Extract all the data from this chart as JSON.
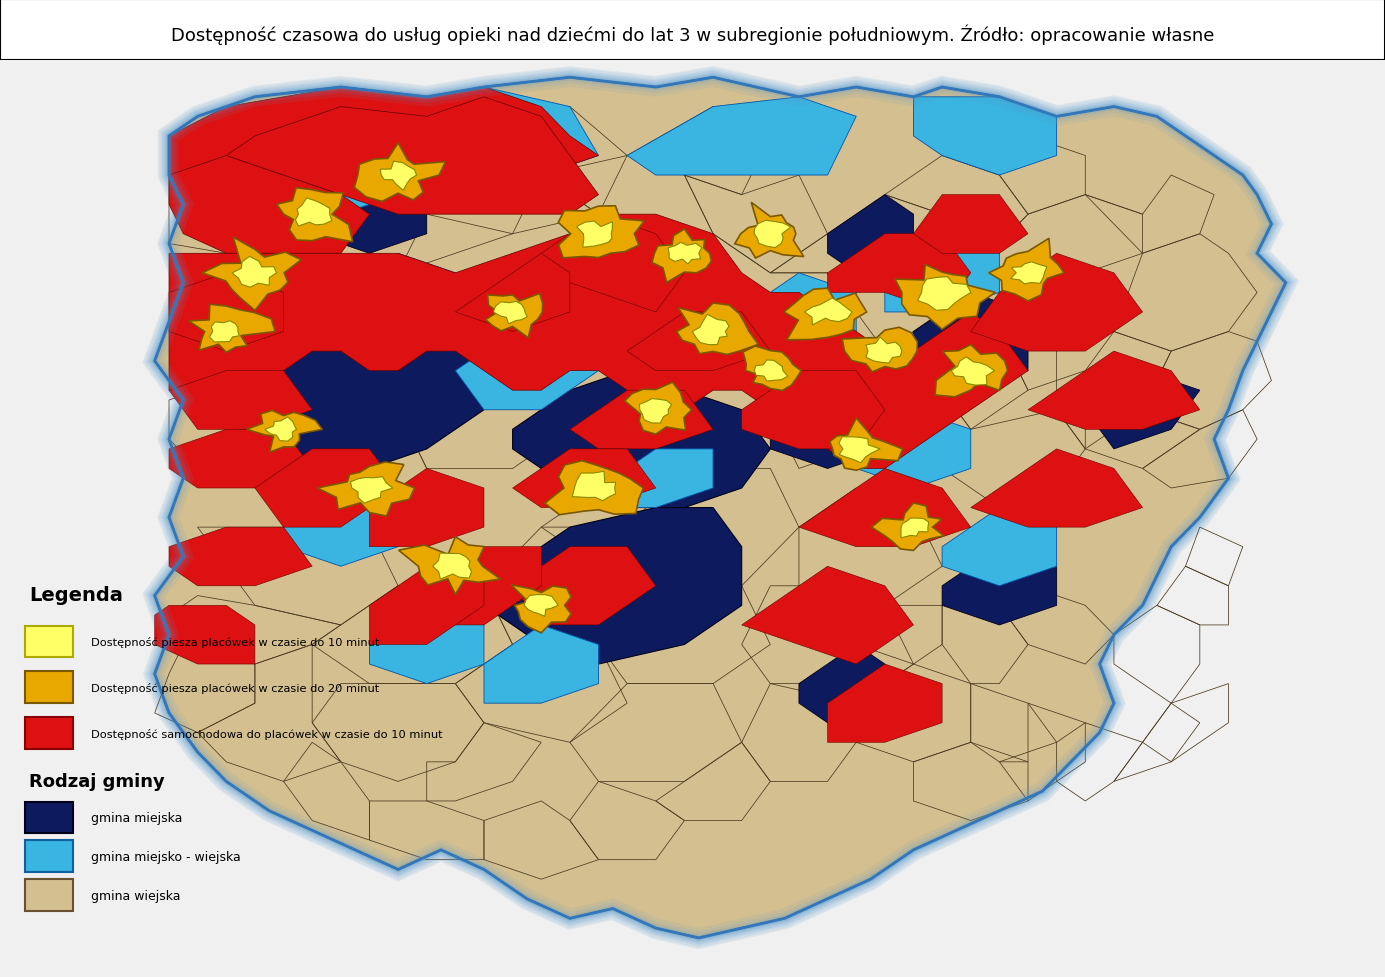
{
  "title": "Dostępność czasowa do usług opieki nad dziećmi do lat 3 w subregionie południowym. Źródło: opracowanie własne",
  "title_fontsize": 13,
  "legend": {
    "header": "Legenda",
    "items": [
      {
        "label": "Dostępność piesza placówek w czasie do 10 minut",
        "color": "#ffff66",
        "edgecolor": "#aaaa00"
      },
      {
        "label": "Dostępność piesza placówek w czasie do 20 minut",
        "color": "#e8a800",
        "edgecolor": "#7a5800"
      },
      {
        "label": "Dostępność samochodowa do placówek w czasie do 10 minut",
        "color": "#dd1111",
        "edgecolor": "#880000"
      }
    ],
    "header2": "Rodzaj gminy",
    "items2": [
      {
        "label": "gmina miejska",
        "color": "#0d1b5e",
        "edgecolor": "#00001a"
      },
      {
        "label": "gmina miejsko - wiejska",
        "color": "#3ab4e0",
        "edgecolor": "#1060a0"
      },
      {
        "label": "gmina wiejska",
        "color": "#d4bf90",
        "edgecolor": "#6a5030"
      }
    ]
  },
  "colors": {
    "rural": "#d4bf90",
    "urban": "#0d1b5e",
    "suburban": "#3ab4e0",
    "car_access": "#dd1111",
    "walk_20": "#e8a800",
    "walk_10": "#ffff66",
    "glow": "#5599cc",
    "bg": "#f0f0f0",
    "title_bg": "#ffffff"
  }
}
